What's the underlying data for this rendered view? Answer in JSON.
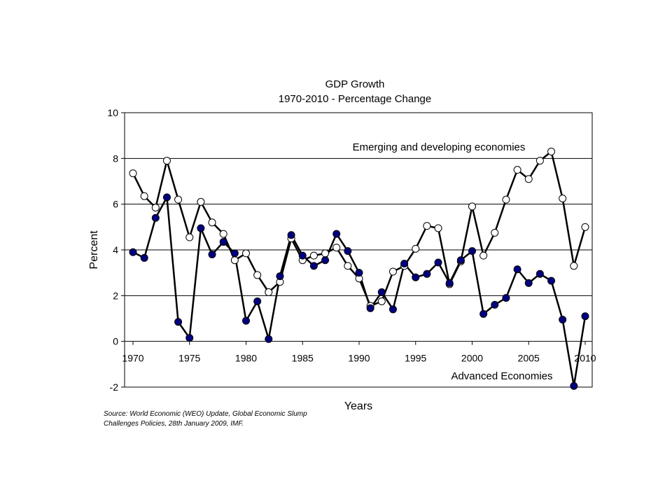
{
  "chart_data": {
    "type": "line",
    "title": "GDP Growth",
    "subtitle": "1970-2010 - Percentage Change",
    "xlabel": "Years",
    "ylabel": "Percent",
    "xlim": [
      1970,
      2010
    ],
    "ylim": [
      -2,
      10
    ],
    "x_ticks": [
      "1970",
      "1975",
      "1980",
      "1985",
      "1990",
      "1995",
      "2000",
      "2005",
      "2010"
    ],
    "y_ticks": [
      "-2",
      "0",
      "2",
      "4",
      "6",
      "8",
      "10"
    ],
    "grid": true,
    "x": [
      1970,
      1971,
      1972,
      1973,
      1974,
      1975,
      1976,
      1977,
      1978,
      1979,
      1980,
      1981,
      1982,
      1983,
      1984,
      1985,
      1986,
      1987,
      1988,
      1989,
      1990,
      1991,
      1992,
      1993,
      1994,
      1995,
      1996,
      1997,
      1998,
      1999,
      2000,
      2001,
      2002,
      2003,
      2004,
      2005,
      2006,
      2007,
      2008,
      2009,
      2010
    ],
    "series": [
      {
        "name": "Emerging and developing economies",
        "marker": "open-circle",
        "values": [
          7.35,
          6.35,
          5.85,
          7.9,
          6.2,
          4.55,
          6.1,
          5.2,
          4.7,
          3.55,
          3.85,
          2.9,
          2.15,
          2.6,
          4.5,
          3.55,
          3.75,
          3.85,
          4.1,
          3.3,
          2.75,
          1.55,
          1.75,
          3.05,
          3.3,
          4.05,
          5.05,
          4.95,
          2.5,
          3.5,
          5.9,
          3.75,
          4.75,
          6.2,
          7.5,
          7.1,
          7.9,
          8.3,
          6.25,
          3.3,
          5.0
        ]
      },
      {
        "name": "Advanced Economies",
        "marker": "filled-circle",
        "values": [
          3.9,
          3.65,
          5.4,
          6.3,
          0.85,
          0.15,
          4.95,
          3.8,
          4.35,
          3.85,
          0.9,
          1.75,
          0.1,
          2.85,
          4.65,
          3.75,
          3.3,
          3.55,
          4.7,
          3.95,
          3.0,
          1.45,
          2.15,
          1.4,
          3.4,
          2.8,
          2.95,
          3.45,
          2.55,
          3.55,
          3.95,
          1.2,
          1.6,
          1.9,
          3.15,
          2.55,
          2.95,
          2.65,
          0.95,
          -1.95,
          1.1
        ]
      }
    ],
    "colors": {
      "advanced_fill": "#000080",
      "emerging_fill": "#ffffff",
      "line": "#000000",
      "grid": "#000000"
    }
  },
  "source": {
    "line1": "Source: World Economic (WEO) Update, Global Economic Slump",
    "line2": "Challenges Policies, 28th January 2009, IMF."
  }
}
